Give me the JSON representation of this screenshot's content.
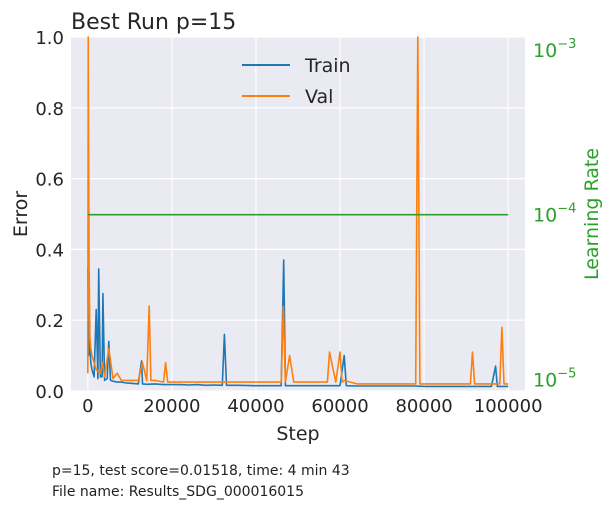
{
  "chart_data": {
    "type": "line",
    "title": "Best Run p=15",
    "xlabel": "Step",
    "ylabel": "Error",
    "y2label": "Learning Rate",
    "xlim": [
      -4000,
      104000
    ],
    "ylim": [
      0,
      1.0
    ],
    "y2lim": [
      8.5e-06,
      0.0012
    ],
    "y2scale": "log",
    "xticks": [
      0,
      20000,
      40000,
      60000,
      80000,
      100000
    ],
    "yticks": [
      0.0,
      0.2,
      0.4,
      0.6,
      0.8,
      1.0
    ],
    "y2ticks": [
      1e-05,
      0.0001,
      0.001
    ],
    "xtick_labels": [
      "0",
      "20000",
      "40000",
      "60000",
      "80000",
      "100000"
    ],
    "ytick_labels": [
      "0.0",
      "0.2",
      "0.4",
      "0.6",
      "0.8",
      "1.0"
    ],
    "y2tick_labels": [
      {
        "base": "10",
        "exp": "−5"
      },
      {
        "base": "10",
        "exp": "−4"
      },
      {
        "base": "10",
        "exp": "−3"
      }
    ],
    "grid": true,
    "legend_position": "upper-center",
    "series": [
      {
        "name": "Train",
        "color": "#1f77b4",
        "x": [
          0,
          200,
          400,
          700,
          1000,
          1500,
          2000,
          2400,
          2600,
          3000,
          3400,
          3600,
          4000,
          4600,
          5000,
          5400,
          6000,
          7000,
          8000,
          9000,
          10000,
          12000,
          12800,
          13000,
          14000,
          16000,
          18000,
          20000,
          22000,
          24000,
          26000,
          28000,
          30000,
          32000,
          32500,
          33000,
          36000,
          40000,
          44000,
          46000,
          46600,
          47000,
          48000,
          52000,
          56000,
          60000,
          61000,
          61500,
          64000,
          68000,
          72000,
          76000,
          78000,
          80000,
          84000,
          88000,
          92000,
          96000,
          97000,
          97400,
          100000
        ],
        "values": [
          0.35,
          0.1,
          0.16,
          0.08,
          0.06,
          0.04,
          0.23,
          0.035,
          0.345,
          0.04,
          0.04,
          0.275,
          0.03,
          0.035,
          0.14,
          0.03,
          0.028,
          0.025,
          0.025,
          0.023,
          0.022,
          0.02,
          0.085,
          0.02,
          0.019,
          0.02,
          0.018,
          0.018,
          0.018,
          0.017,
          0.018,
          0.016,
          0.017,
          0.016,
          0.16,
          0.016,
          0.016,
          0.015,
          0.015,
          0.015,
          0.37,
          0.015,
          0.015,
          0.015,
          0.015,
          0.015,
          0.1,
          0.015,
          0.014,
          0.014,
          0.014,
          0.014,
          0.014,
          0.013,
          0.013,
          0.013,
          0.013,
          0.013,
          0.07,
          0.013,
          0.013
        ]
      },
      {
        "name": "Val",
        "color": "#ff7f0e",
        "x": [
          0,
          100,
          300,
          500,
          700,
          1000,
          1500,
          2000,
          3000,
          3500,
          4000,
          5000,
          6000,
          7000,
          8000,
          10000,
          12000,
          13000,
          14000,
          14600,
          15000,
          16000,
          18000,
          18500,
          19000,
          22000,
          26000,
          30000,
          34000,
          38000,
          42000,
          46000,
          46500,
          47000,
          48000,
          49000,
          52000,
          56000,
          57000,
          57500,
          59000,
          60000,
          60500,
          61000,
          64000,
          68000,
          72000,
          76000,
          77000,
          78000,
          78500,
          79000,
          80000,
          84000,
          88000,
          91000,
          91500,
          92000,
          96000,
          98000,
          98500,
          99000,
          100000
        ],
        "values": [
          0.05,
          1.0,
          0.35,
          0.15,
          0.12,
          0.1,
          0.08,
          0.06,
          0.05,
          0.08,
          0.04,
          0.12,
          0.035,
          0.05,
          0.03,
          0.03,
          0.03,
          0.08,
          0.03,
          0.24,
          0.03,
          0.03,
          0.025,
          0.08,
          0.025,
          0.025,
          0.025,
          0.025,
          0.025,
          0.025,
          0.025,
          0.025,
          0.24,
          0.025,
          0.1,
          0.025,
          0.025,
          0.025,
          0.025,
          0.11,
          0.025,
          0.11,
          0.025,
          0.03,
          0.02,
          0.02,
          0.02,
          0.02,
          0.02,
          0.02,
          1.0,
          0.02,
          0.02,
          0.02,
          0.02,
          0.02,
          0.11,
          0.02,
          0.02,
          0.02,
          0.18,
          0.02,
          0.02
        ]
      },
      {
        "name": "",
        "color": "#2ca02c",
        "axis": "right",
        "x": [
          0,
          100000
        ],
        "values": [
          0.0001,
          0.0001
        ]
      }
    ],
    "legend": [
      "Train",
      "Val"
    ]
  },
  "footer": {
    "line1": "p=15, test score=0.01518, time: 4 min 43",
    "line2": "File name: Results_SDG_000016015"
  },
  "colors": {
    "axes_bg": "#eaeaf2",
    "grid": "#ffffff",
    "text": "#262626",
    "lr_axis": "#2ca02c"
  }
}
